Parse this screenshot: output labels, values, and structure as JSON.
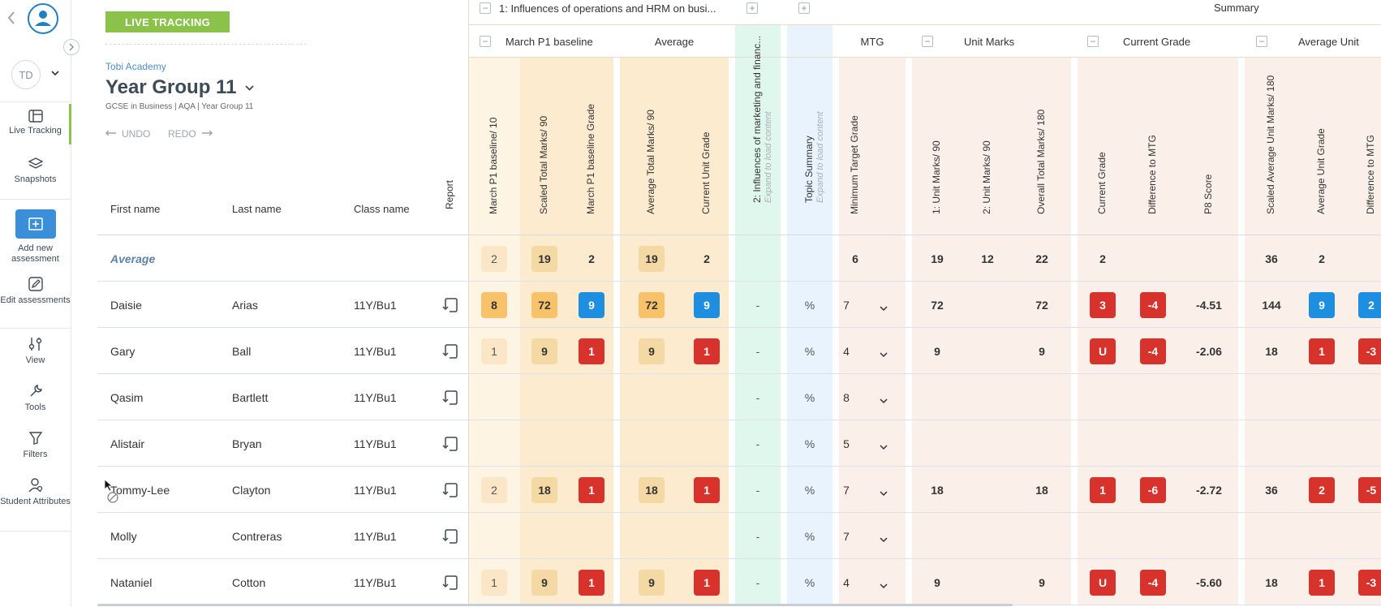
{
  "app": {
    "live_tracking_badge": "LIVE TRACKING",
    "avatar_initials": "TD"
  },
  "sidebar": {
    "items": [
      {
        "label": "Live Tracking"
      },
      {
        "label": "Snapshots"
      },
      {
        "label": "Add new assessment"
      },
      {
        "label": "Edit assessments"
      },
      {
        "label": "View"
      },
      {
        "label": "Tools"
      },
      {
        "label": "Filters"
      },
      {
        "label": "Student Attributes"
      }
    ]
  },
  "header": {
    "school": "Tobi Academy",
    "title": "Year Group 11",
    "subtitle": "GCSE in Business | AQA | Year Group 11",
    "undo": "UNDO",
    "redo": "REDO"
  },
  "columns": {
    "first_name": "First name",
    "last_name": "Last name",
    "class_name": "Class name",
    "report": "Report"
  },
  "groups": {
    "topic1": "1: Influences of operations and HRM on busi...",
    "summary": "Summary",
    "baseline": "March P1 baseline",
    "average": "Average",
    "mtg": "MTG",
    "unit_marks": "Unit Marks",
    "current_grade": "Current Grade",
    "average_unit": "Average Unit"
  },
  "vheaders": {
    "c1": "March P1 baseline/ 10",
    "c2": "Scaled Total Marks/ 90",
    "c3": "March P1 baseline Grade",
    "c4": "Average Total Marks/ 90",
    "c5": "Current Unit Grade",
    "c6": "2: Influences of marketing and financ...",
    "c6_sub": "Expand to load content",
    "c7": "Topic Summary",
    "c7_sub": "Expand to load content",
    "c8": "Minimum Target Grade",
    "c9": "1: Unit Marks/ 90",
    "c10": "2: Unit Marks/ 90",
    "c11": "Overall Total Marks/ 180",
    "c12": "Current Grade",
    "c13": "Difference to MTG",
    "c14": "P8 Score",
    "c15": "Scaled Average Unit Marks/ 180",
    "c16": "Average Unit Grade",
    "c17": "Difference to MTG"
  },
  "average_row": {
    "label": "Average",
    "c1": "2",
    "c2": "19",
    "c3": "2",
    "c4": "19",
    "c5": "2",
    "c8": "6",
    "c9": "19",
    "c10": "12",
    "c11": "22",
    "c12": "2",
    "c15": "36",
    "c16": "2"
  },
  "students": [
    {
      "first": "Daisie",
      "last": "Arias",
      "class": "11Y/Bu1",
      "c1": "8",
      "c2": "72",
      "c3": "9",
      "c4": "72",
      "c5": "9",
      "c6": "-",
      "c7": "%",
      "c8": "7",
      "c9": "72",
      "c10": "",
      "c11": "72",
      "c12": "3",
      "c13": "-4",
      "c14": "-4.51",
      "c15": "144",
      "c16": "9",
      "c17": "2"
    },
    {
      "first": "Gary",
      "last": "Ball",
      "class": "11Y/Bu1",
      "c1": "1",
      "c2": "9",
      "c3": "1",
      "c4": "9",
      "c5": "1",
      "c6": "-",
      "c7": "%",
      "c8": "4",
      "c9": "9",
      "c10": "",
      "c11": "9",
      "c12": "U",
      "c13": "-4",
      "c14": "-2.06",
      "c15": "18",
      "c16": "1",
      "c17": "-3"
    },
    {
      "first": "Qasim",
      "last": "Bartlett",
      "class": "11Y/Bu1",
      "c1": "",
      "c2": "",
      "c3": "",
      "c4": "",
      "c5": "",
      "c6": "-",
      "c7": "%",
      "c8": "8",
      "c9": "",
      "c10": "",
      "c11": "",
      "c12": "",
      "c13": "",
      "c14": "",
      "c15": "",
      "c16": "",
      "c17": ""
    },
    {
      "first": "Alistair",
      "last": "Bryan",
      "class": "11Y/Bu1",
      "c1": "",
      "c2": "",
      "c3": "",
      "c4": "",
      "c5": "",
      "c6": "-",
      "c7": "%",
      "c8": "5",
      "c9": "",
      "c10": "",
      "c11": "",
      "c12": "",
      "c13": "",
      "c14": "",
      "c15": "",
      "c16": "",
      "c17": ""
    },
    {
      "first": "Tommy-Lee",
      "last": "Clayton",
      "class": "11Y/Bu1",
      "c1": "2",
      "c2": "18",
      "c3": "1",
      "c4": "18",
      "c5": "1",
      "c6": "-",
      "c7": "%",
      "c8": "7",
      "c9": "18",
      "c10": "",
      "c11": "18",
      "c12": "1",
      "c13": "-6",
      "c14": "-2.72",
      "c15": "36",
      "c16": "2",
      "c17": "-5"
    },
    {
      "first": "Molly",
      "last": "Contreras",
      "class": "11Y/Bu1",
      "c1": "",
      "c2": "",
      "c3": "",
      "c4": "",
      "c5": "",
      "c6": "-",
      "c7": "%",
      "c8": "7",
      "c9": "",
      "c10": "",
      "c11": "",
      "c12": "",
      "c13": "",
      "c14": "",
      "c15": "",
      "c16": "",
      "c17": ""
    },
    {
      "first": "Nataniel",
      "last": "Cotton",
      "class": "11Y/Bu1",
      "c1": "1",
      "c2": "9",
      "c3": "1",
      "c4": "9",
      "c5": "1",
      "c6": "-",
      "c7": "%",
      "c8": "4",
      "c9": "9",
      "c10": "",
      "c11": "9",
      "c12": "U",
      "c13": "-4",
      "c14": "-5.60",
      "c15": "18",
      "c16": "1",
      "c17": "-3"
    }
  ],
  "colors": {
    "accent_green": "#8bc34a",
    "badge_red": "#d7322b",
    "badge_blue": "#1e8fe0",
    "badge_amber": "#f8c26a",
    "brand_blue": "#1f7fc3"
  }
}
